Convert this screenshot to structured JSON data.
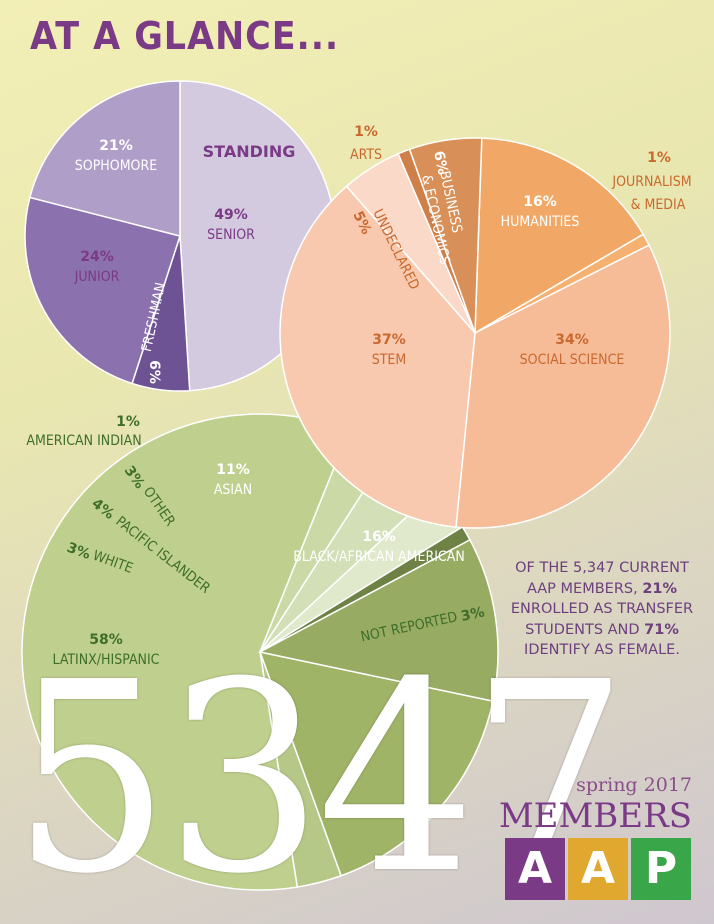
{
  "header": {
    "title": "AT A GLANCE..."
  },
  "chart_data": [
    {
      "type": "pie",
      "title": "STANDING",
      "slices": [
        {
          "label": "SENIOR",
          "pct_label": "49%",
          "value": 49,
          "color": "#d3cadf"
        },
        {
          "label": "FRESHMAN",
          "pct_label": "6%",
          "value": 6,
          "color": "#6e5394"
        },
        {
          "label": "JUNIOR",
          "pct_label": "24%",
          "value": 24,
          "color": "#8b72ae"
        },
        {
          "label": "SOPHOMORE",
          "pct_label": "21%",
          "value": 21,
          "color": "#ae9ec8"
        }
      ]
    },
    {
      "type": "pie",
      "slices": [
        {
          "label": "HUMANITIES",
          "pct_label": "16%",
          "value": 16,
          "color": "#f1a866"
        },
        {
          "label": "JOURNALISM & MEDIA",
          "pct_label": "1%",
          "value": 1,
          "color": "#f5b170"
        },
        {
          "label": "SOCIAL SCIENCE",
          "pct_label": "34%",
          "value": 34,
          "color": "#f6bc98"
        },
        {
          "label": "STEM",
          "pct_label": "37%",
          "value": 37,
          "color": "#f8c9ae"
        },
        {
          "label": "UNDECLARED",
          "pct_label": "5%",
          "value": 5,
          "color": "#fad9c8"
        },
        {
          "label": "ARTS",
          "pct_label": "1%",
          "value": 1,
          "color": "#cf7f48"
        },
        {
          "label": "BUSINESS & ECONOMICS",
          "pct_label": "6%",
          "value": 6,
          "color": "#d99058"
        }
      ]
    },
    {
      "type": "pie",
      "slices": [
        {
          "label": "BLACK/AFRICAN AMERICAN",
          "pct_label": "16%",
          "value": 16,
          "color": "#a0b468"
        },
        {
          "label": "NOT REPORTED",
          "pct_label": "3%",
          "value": 3,
          "color": "#b6c888"
        },
        {
          "label": "LATINX/HISPANIC",
          "pct_label": "58%",
          "value": 58,
          "color": "#bfd08e"
        },
        {
          "label": "WHITE",
          "pct_label": "3%",
          "value": 3,
          "color": "#cbd9a7"
        },
        {
          "label": "PACIFIC ISLANDER",
          "pct_label": "4%",
          "value": 4,
          "color": "#d3dfb6"
        },
        {
          "label": "OTHER",
          "pct_label": "3%",
          "value": 3,
          "color": "#e0e9cb"
        },
        {
          "label": "AMERICAN INDIAN",
          "pct_label": "1%",
          "value": 1,
          "color": "#6e8245"
        },
        {
          "label": "ASIAN",
          "pct_label": "11%",
          "value": 11,
          "color": "#97ab62"
        }
      ]
    }
  ],
  "summary": {
    "part1": "OF THE 5,347 CURRENT AAP MEMBERS,",
    "pct1": "21%",
    "part2": "ENROLLED AS TRANSFER STUDENTS AND",
    "pct2": "71%",
    "part3": "IDENTIFY AS FEMALE."
  },
  "big_number": "5347",
  "branding": {
    "season": "spring 2017",
    "members": "MEMBERS",
    "logo": [
      {
        "letter": "A",
        "color": "#7b3a86"
      },
      {
        "letter": "A",
        "color": "#e0a82e"
      },
      {
        "letter": "P",
        "color": "#3aa64a"
      }
    ]
  },
  "colors": {
    "purple_text": "#7b3a86",
    "orange_text": "#c9692f",
    "green_text": "#3f6e2a"
  }
}
